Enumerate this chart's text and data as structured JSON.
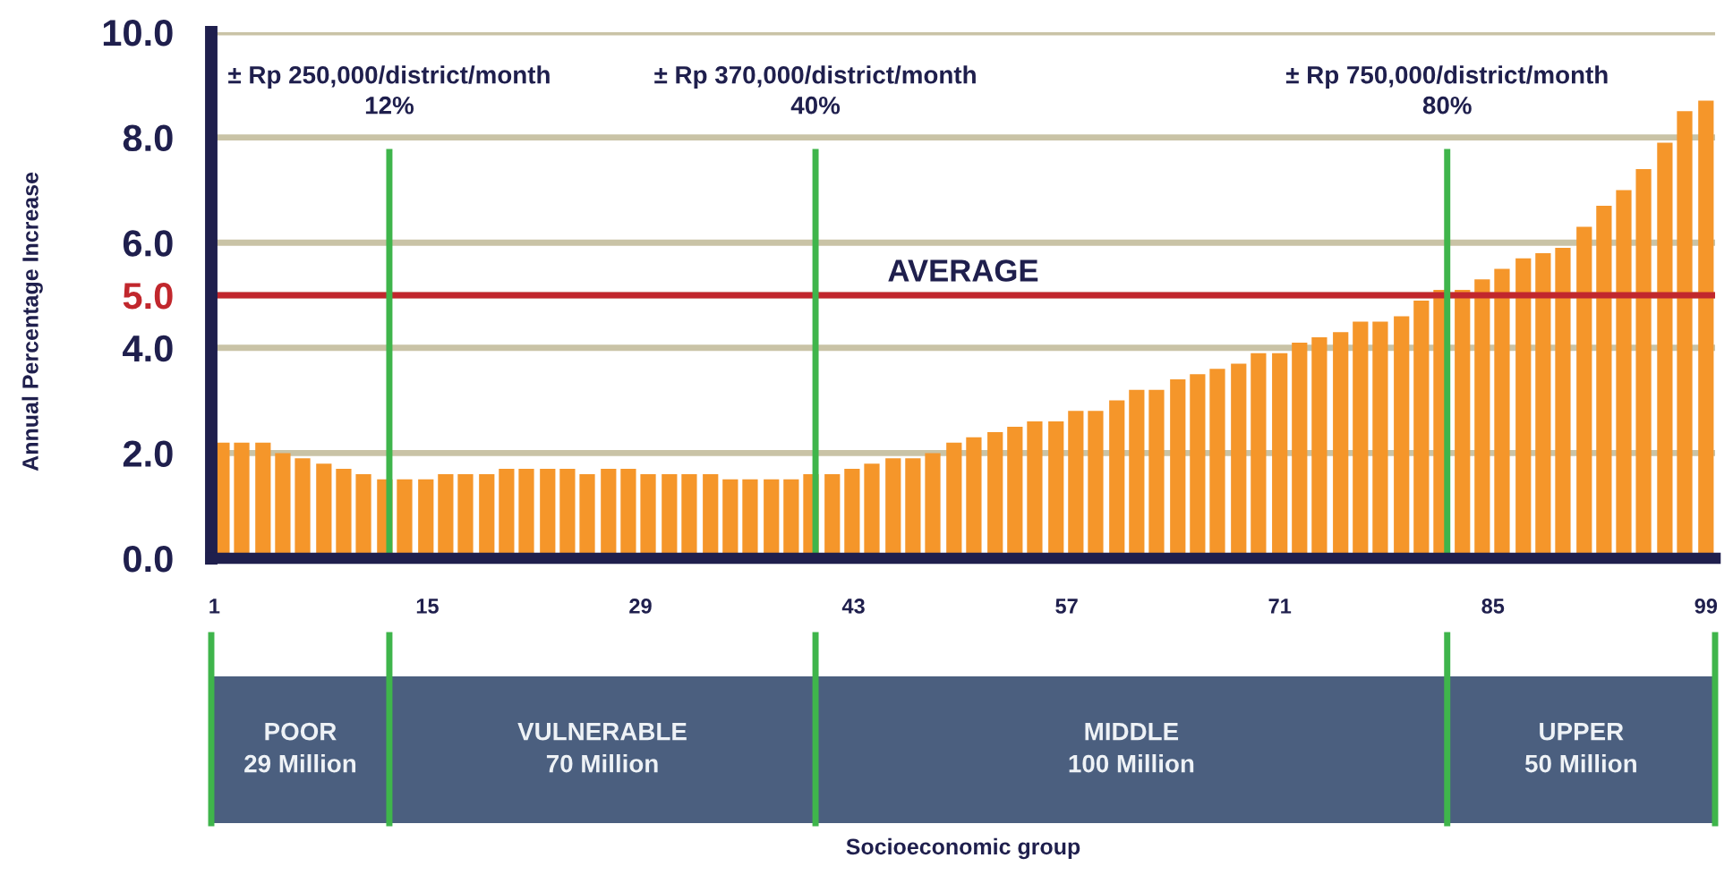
{
  "chart_data": {
    "type": "bar",
    "ylabel": "Annual Percentage Increase",
    "x": [
      1.5,
      2.8,
      4.2,
      5.5,
      6.8,
      8.2,
      9.5,
      10.8,
      12.2,
      13.5,
      14.9,
      16.2,
      17.5,
      18.9,
      20.2,
      21.5,
      22.9,
      24.2,
      25.5,
      26.9,
      28.2,
      29.5,
      30.9,
      32.2,
      33.6,
      34.9,
      36.2,
      37.6,
      38.9,
      40.2,
      41.6,
      42.9,
      44.2,
      45.6,
      46.9,
      48.2,
      49.6,
      50.9,
      52.3,
      53.6,
      54.9,
      56.3,
      57.6,
      58.9,
      60.3,
      61.6,
      62.9,
      64.3,
      65.6,
      66.9,
      68.3,
      69.6,
      71.0,
      72.3,
      73.6,
      75.0,
      76.3,
      77.6,
      79.0,
      80.3,
      81.6,
      83.0,
      84.3,
      85.6,
      87.0,
      88.3,
      89.6,
      91.0,
      92.3,
      93.6,
      94.9,
      96.3,
      97.6,
      99.0
    ],
    "values": [
      2.2,
      2.2,
      2.2,
      2.0,
      1.9,
      1.8,
      1.7,
      1.6,
      1.5,
      1.5,
      1.5,
      1.6,
      1.6,
      1.6,
      1.7,
      1.7,
      1.7,
      1.7,
      1.6,
      1.7,
      1.7,
      1.6,
      1.6,
      1.6,
      1.6,
      1.5,
      1.5,
      1.5,
      1.5,
      1.6,
      1.6,
      1.7,
      1.8,
      1.9,
      1.9,
      2.0,
      2.2,
      2.3,
      2.4,
      2.5,
      2.6,
      2.6,
      2.8,
      2.8,
      3.0,
      3.2,
      3.2,
      3.4,
      3.5,
      3.6,
      3.7,
      3.9,
      3.9,
      4.1,
      4.2,
      4.3,
      4.5,
      4.5,
      4.6,
      4.9,
      5.1,
      5.1,
      5.3,
      5.5,
      5.7,
      5.8,
      5.9,
      6.3,
      6.7,
      7.0,
      7.4,
      7.9,
      8.5,
      8.7
    ],
    "color": "#f5962a",
    "xlim": [
      0.8,
      99.6
    ],
    "xticks": [
      1,
      15,
      29,
      43,
      57,
      71,
      85,
      99
    ],
    "ylim": [
      0,
      10
    ],
    "yticks": [
      {
        "value": 0,
        "label": "0.0"
      },
      {
        "value": 2,
        "label": "2.0"
      },
      {
        "value": 4,
        "label": "4.0"
      },
      {
        "value": 5,
        "label": "5.0"
      },
      {
        "value": 6,
        "label": "6.0"
      },
      {
        "value": 8,
        "label": "8.0"
      },
      {
        "value": 10,
        "label": "10.0"
      }
    ],
    "grid": "y",
    "ref_lines": [
      {
        "axis": "y",
        "value": 5,
        "label": "AVERAGE",
        "color": "#c1272d"
      },
      {
        "axis": "x",
        "value": 12.5,
        "label": "± Rp 250,000/district/month\n12%",
        "color": "#3fb54b"
      },
      {
        "axis": "x",
        "value": 40.5,
        "label": "± Rp 370,000/district/month\n40%",
        "color": "#3fb54b"
      },
      {
        "axis": "x",
        "value": 82,
        "label": "± Rp 750,000/district/month\n80%",
        "color": "#3fb54b"
      }
    ],
    "annotations": [
      "POOR\n29 Million",
      "VULNERABLE\n70 Million",
      "MIDDLE\n100 Million",
      "UPPER\n50 Million",
      "Socioeconomic group"
    ]
  }
}
